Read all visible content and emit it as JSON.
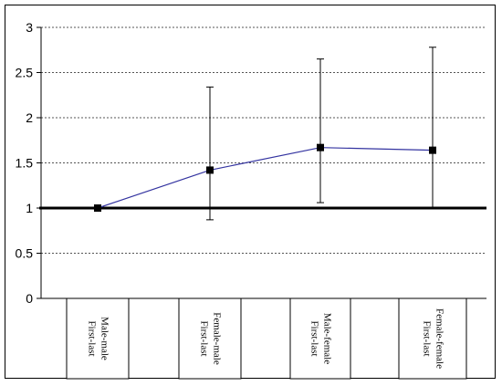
{
  "chart_data": {
    "type": "line",
    "title": "",
    "xlabel": "",
    "ylabel": "",
    "ylim": [
      0,
      3
    ],
    "yticks": [
      "0",
      "0.5",
      "1",
      "1.5",
      "2",
      "2.5",
      "3"
    ],
    "grid": true,
    "reference_line": 1,
    "categories": [
      [
        "First-last",
        "Male-male"
      ],
      [
        "First-last",
        "Female-male"
      ],
      [
        "First-last",
        "Male-female"
      ],
      [
        "First-last",
        "Female-female"
      ]
    ],
    "series": [
      {
        "values": [
          1.0,
          1.42,
          1.67,
          1.64
        ],
        "error_low": [
          1.0,
          0.87,
          1.06,
          1.0
        ],
        "error_high": [
          1.0,
          2.34,
          2.65,
          2.78
        ]
      }
    ],
    "colors": {
      "line": "#3333a0",
      "marker": "#000000",
      "grid": "#555555",
      "reference": "#000000"
    }
  }
}
